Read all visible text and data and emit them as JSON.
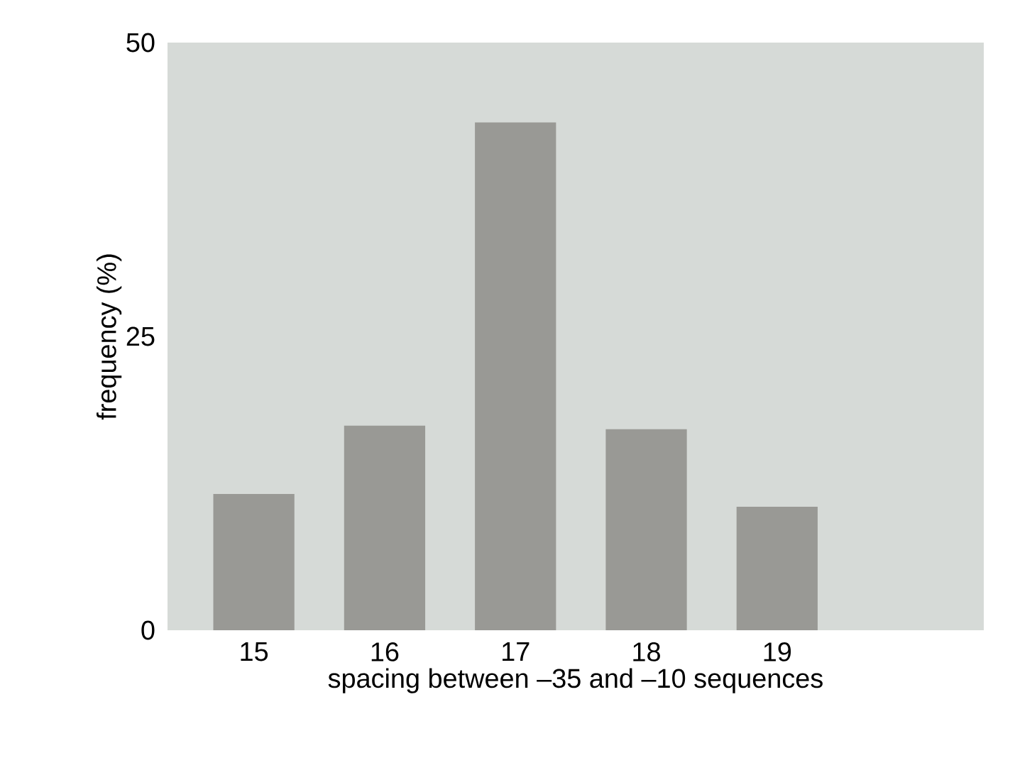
{
  "chart_data": {
    "type": "bar",
    "xlabel": "spacing between –35 and –10 sequences",
    "ylabel": "frequency (%)",
    "categories": [
      "15",
      "16",
      "17",
      "18",
      "19"
    ],
    "values": [
      11.6,
      17.4,
      43.2,
      17.1,
      10.5
    ],
    "color": "#999995",
    "ylim": [
      0,
      50
    ],
    "yticks": [
      0,
      25,
      50
    ]
  }
}
